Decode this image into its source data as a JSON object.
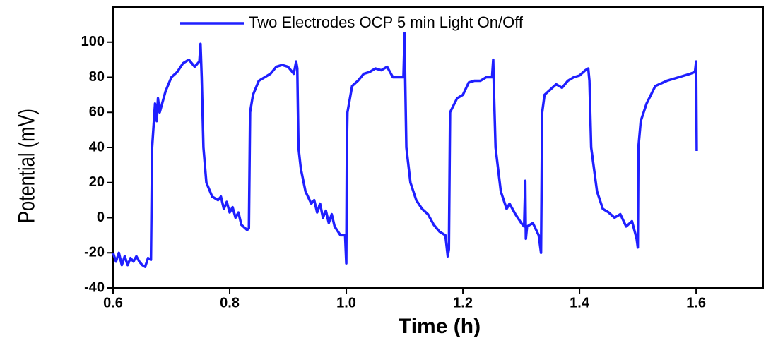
{
  "chart_data": {
    "type": "line",
    "x_label": "Time (h)",
    "y_label": "Potential (mV)",
    "xlim": [
      0.6,
      1.715
    ],
    "ylim": [
      -40,
      120
    ],
    "xticks": [
      0.6,
      0.8,
      {
        "value": 1,
        "label": "1.0"
      },
      1.2,
      1.4,
      1.6
    ],
    "yticks": [
      -40,
      -20,
      0,
      20,
      40,
      60,
      80,
      100
    ],
    "legend": "top",
    "series": [
      {
        "name": "Two Electrodes OCP 5 min Light On/Off",
        "color": "#1f1fff",
        "x": [
          0.6,
          0.605,
          0.61,
          0.615,
          0.62,
          0.625,
          0.63,
          0.635,
          0.64,
          0.645,
          0.65,
          0.655,
          0.66,
          0.665,
          0.667,
          0.669,
          0.672,
          0.675,
          0.677,
          0.68,
          0.69,
          0.7,
          0.71,
          0.72,
          0.73,
          0.74,
          0.748,
          0.75,
          0.752,
          0.755,
          0.76,
          0.77,
          0.78,
          0.785,
          0.79,
          0.795,
          0.8,
          0.805,
          0.81,
          0.815,
          0.82,
          0.83,
          0.833,
          0.835,
          0.84,
          0.85,
          0.86,
          0.87,
          0.88,
          0.89,
          0.9,
          0.91,
          0.914,
          0.916,
          0.918,
          0.922,
          0.93,
          0.94,
          0.945,
          0.95,
          0.955,
          0.96,
          0.965,
          0.97,
          0.975,
          0.98,
          0.99,
          0.998,
          1.0,
          1.001,
          1.002,
          1.01,
          1.02,
          1.03,
          1.04,
          1.05,
          1.06,
          1.07,
          1.08,
          1.098,
          1.1,
          1.101,
          1.103,
          1.11,
          1.12,
          1.13,
          1.14,
          1.15,
          1.16,
          1.17,
          1.174,
          1.176,
          1.178,
          1.19,
          1.2,
          1.21,
          1.22,
          1.23,
          1.24,
          1.25,
          1.252,
          1.253,
          1.256,
          1.265,
          1.275,
          1.28,
          1.29,
          1.3,
          1.305,
          1.307,
          1.308,
          1.31,
          1.32,
          1.33,
          1.334,
          1.336,
          1.34,
          1.35,
          1.36,
          1.37,
          1.38,
          1.39,
          1.4,
          1.41,
          1.415,
          1.417,
          1.42,
          1.43,
          1.44,
          1.45,
          1.46,
          1.47,
          1.48,
          1.49,
          1.498,
          1.5,
          1.501,
          1.505,
          1.515,
          1.53,
          1.55,
          1.57,
          1.58,
          1.59,
          1.598,
          1.6,
          1.601
        ],
        "values": [
          -20,
          -25,
          -20,
          -27,
          -22,
          -27,
          -23,
          -25,
          -22,
          -25,
          -27,
          -28,
          -23,
          -24,
          40,
          50,
          65,
          55,
          68,
          60,
          72,
          80,
          83,
          88,
          90,
          86,
          89,
          99,
          80,
          40,
          20,
          12,
          10,
          12,
          5,
          9,
          3,
          6,
          0,
          3,
          -4,
          -7,
          -6,
          60,
          70,
          78,
          80,
          82,
          86,
          87,
          86,
          82,
          89,
          85,
          40,
          28,
          15,
          8,
          10,
          3,
          8,
          0,
          4,
          -3,
          2,
          -5,
          -10,
          -10,
          -26,
          40,
          60,
          75,
          78,
          82,
          83,
          85,
          84,
          86,
          80,
          80,
          105,
          80,
          40,
          20,
          10,
          5,
          2,
          -4,
          -8,
          -10,
          -22,
          -18,
          60,
          68,
          70,
          77,
          78,
          78,
          80,
          80,
          90,
          75,
          40,
          15,
          5,
          8,
          2,
          -3,
          -5,
          21,
          -12,
          -5,
          -3,
          -10,
          -20,
          60,
          70,
          73,
          76,
          74,
          78,
          80,
          81,
          84,
          85,
          78,
          40,
          15,
          5,
          3,
          0,
          2,
          -5,
          -2,
          -12,
          -17,
          40,
          55,
          65,
          75,
          78,
          80,
          81,
          82,
          83,
          89,
          38
        ]
      }
    ]
  }
}
